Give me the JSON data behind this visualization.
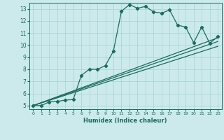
{
  "xlabel": "Humidex (Indice chaleur)",
  "ylabel": "",
  "bg_color": "#cceaec",
  "line_color": "#1a6b5e",
  "xlim": [
    -0.5,
    23.5
  ],
  "ylim": [
    4.7,
    13.5
  ],
  "xticks": [
    0,
    1,
    2,
    3,
    4,
    5,
    6,
    7,
    8,
    9,
    10,
    11,
    12,
    13,
    14,
    15,
    16,
    17,
    18,
    19,
    20,
    21,
    22,
    23
  ],
  "yticks": [
    5,
    6,
    7,
    8,
    9,
    10,
    11,
    12,
    13
  ],
  "series": [
    {
      "x": [
        0,
        1,
        2,
        3,
        4,
        5,
        6,
        7,
        8,
        9,
        10,
        11,
        12,
        13,
        14,
        15,
        16,
        17,
        18,
        19,
        20,
        21,
        22,
        23
      ],
      "y": [
        5,
        5,
        5.3,
        5.35,
        5.45,
        5.5,
        7.5,
        8.0,
        8.0,
        8.3,
        9.5,
        12.8,
        13.35,
        13.05,
        13.2,
        12.75,
        12.65,
        12.9,
        11.65,
        11.5,
        10.2,
        11.5,
        10.15,
        10.7
      ],
      "marker": "D",
      "markersize": 2.2,
      "linewidth": 0.9
    },
    {
      "x": [
        0,
        23
      ],
      "y": [
        5,
        10.6
      ],
      "marker": null,
      "linewidth": 0.9
    },
    {
      "x": [
        0,
        23
      ],
      "y": [
        5,
        10.3
      ],
      "marker": null,
      "linewidth": 0.9
    },
    {
      "x": [
        0,
        23
      ],
      "y": [
        5,
        9.9
      ],
      "marker": null,
      "linewidth": 0.9
    }
  ]
}
